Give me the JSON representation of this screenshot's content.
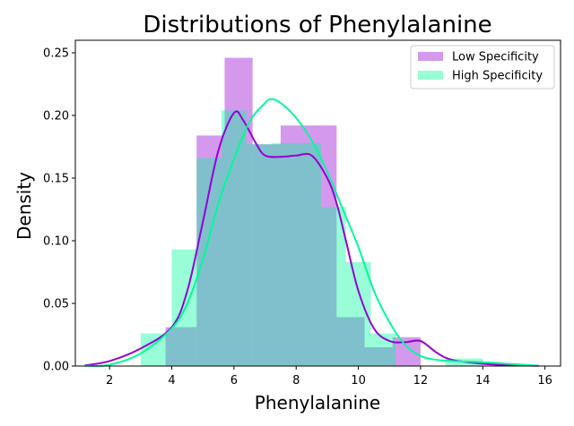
{
  "chart_data": {
    "type": "histogram+kde",
    "title": "Distributions of Phenylalanine",
    "xlabel": "Phenylalanine",
    "ylabel": "Density",
    "xlim": [
      0.9,
      16.5
    ],
    "ylim": [
      0,
      0.26
    ],
    "xticks": [
      2,
      4,
      6,
      8,
      10,
      12,
      14,
      16
    ],
    "yticks": [
      0.0,
      0.05,
      0.1,
      0.15,
      0.2,
      0.25
    ],
    "ytick_labels": [
      "0.00",
      "0.05",
      "0.10",
      "0.15",
      "0.20",
      "0.25"
    ],
    "legend": {
      "position": "top-right",
      "entries": [
        "Low Specificity",
        "High Specificity"
      ]
    },
    "series": [
      {
        "name": "Low Specificity",
        "color": "#9400d3",
        "bar_alpha": 0.4,
        "histogram": {
          "bin_edges": [
            3.8,
            4.8,
            5.7,
            6.6,
            7.5,
            8.4,
            9.3,
            10.2,
            11.1,
            12.0
          ],
          "density": [
            0.031,
            0.184,
            0.246,
            0.177,
            0.192,
            0.192,
            0.039,
            0.015,
            0.023
          ]
        },
        "kde": {
          "x": [
            1.2,
            2.0,
            3.0,
            4.0,
            4.5,
            5.0,
            5.5,
            6.0,
            6.3,
            6.7,
            7.0,
            7.5,
            8.0,
            8.5,
            9.0,
            9.3,
            9.6,
            10.0,
            10.5,
            11.0,
            11.5,
            12.0,
            12.5,
            13.0,
            14.0,
            15.0,
            15.8
          ],
          "y": [
            0.0005,
            0.004,
            0.014,
            0.031,
            0.06,
            0.115,
            0.172,
            0.202,
            0.196,
            0.178,
            0.168,
            0.167,
            0.168,
            0.168,
            0.15,
            0.13,
            0.1,
            0.06,
            0.03,
            0.02,
            0.019,
            0.02,
            0.011,
            0.005,
            0.0018,
            0.0006,
            0.0002
          ]
        }
      },
      {
        "name": "High Specificity",
        "color": "#00fa9a",
        "bar_alpha": 0.4,
        "histogram": {
          "bin_edges": [
            3.0,
            4.0,
            4.8,
            5.6,
            6.4,
            7.2,
            8.0,
            8.8,
            9.6,
            10.4,
            11.2,
            12.0,
            12.8,
            13.6,
            14.0
          ],
          "density": [
            0.026,
            0.093,
            0.166,
            0.204,
            0.177,
            0.178,
            0.178,
            0.127,
            0.083,
            0.026,
            0.0,
            0.0,
            0.006,
            0.006
          ]
        },
        "kde": {
          "x": [
            1.2,
            2.0,
            3.0,
            4.0,
            4.5,
            5.0,
            5.5,
            6.0,
            6.5,
            7.0,
            7.2,
            7.5,
            8.0,
            8.5,
            9.0,
            9.5,
            10.0,
            10.5,
            11.0,
            11.5,
            12.0,
            12.5,
            13.0,
            14.0,
            15.0,
            15.8
          ],
          "y": [
            0.0002,
            0.001,
            0.01,
            0.03,
            0.05,
            0.085,
            0.13,
            0.165,
            0.195,
            0.21,
            0.213,
            0.21,
            0.198,
            0.18,
            0.155,
            0.125,
            0.095,
            0.06,
            0.035,
            0.017,
            0.008,
            0.005,
            0.004,
            0.003,
            0.0015,
            0.0003
          ]
        }
      }
    ]
  }
}
